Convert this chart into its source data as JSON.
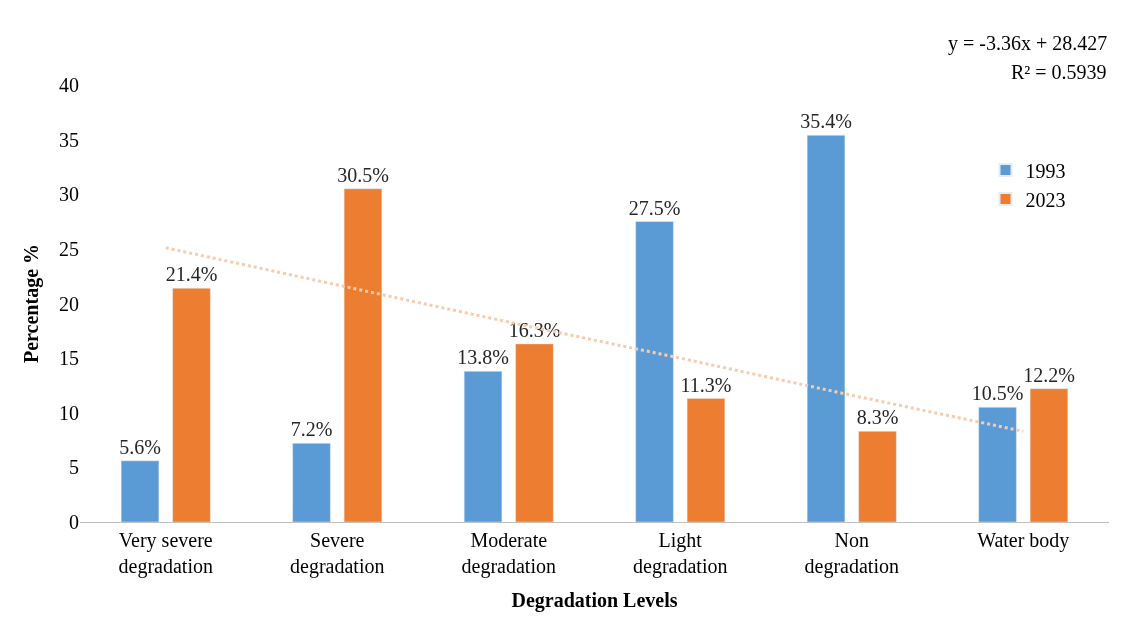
{
  "chart_data": {
    "type": "bar",
    "xlabel": "Degradation Levels",
    "ylabel": "Percentage %",
    "categories": [
      "Very severe degradation",
      "Severe degradation",
      "Moderate degradation",
      "Light degradation",
      "Non degradation",
      "Water body"
    ],
    "series": [
      {
        "name": "1993",
        "color": "#5b9bd5",
        "values": [
          5.6,
          7.2,
          13.8,
          27.5,
          35.4,
          10.5
        ],
        "value_labels": [
          "5.6%",
          "7.2%",
          "13.8%",
          "27.5%",
          "35.4%",
          "10.5%"
        ]
      },
      {
        "name": "2023",
        "color": "#ed7d31",
        "values": [
          21.4,
          30.5,
          16.3,
          11.3,
          8.3,
          12.2
        ],
        "value_labels": [
          "21.4%",
          "30.5%",
          "16.3%",
          "11.3%",
          "8.3%",
          "12.2%"
        ]
      },
      {
        "type": "line",
        "color": "#f8cbad",
        "line_style": "dotted",
        "values": [
          25.1,
          21.7,
          18.3,
          15.0,
          11.6,
          8.3
        ]
      }
    ],
    "ylim": [
      0,
      40
    ],
    "yticks": [
      0,
      5,
      10,
      15,
      20,
      25,
      30,
      35,
      40
    ],
    "legend": "right",
    "annotations": [
      "y = -3.36x + 28.427",
      "R² = 0.5939"
    ]
  }
}
